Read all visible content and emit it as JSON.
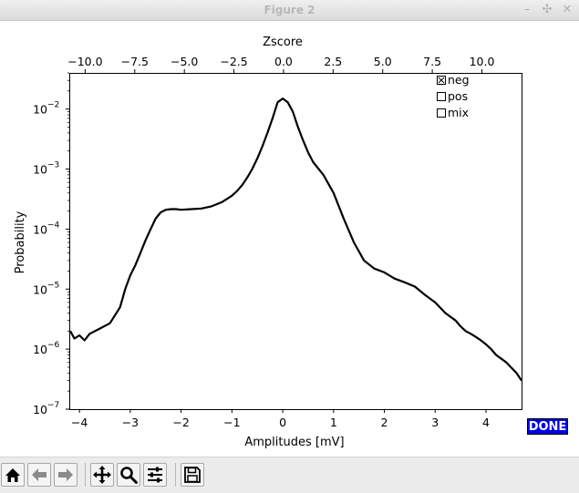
{
  "window": {
    "title": "Figure 2",
    "minimize": "–",
    "maximize": "✣",
    "close": "✕"
  },
  "done_label": "DONE",
  "checkboxes": [
    {
      "label": "neg",
      "checked": true
    },
    {
      "label": "pos",
      "checked": false
    },
    {
      "label": "mix",
      "checked": false
    }
  ],
  "toolbar": {
    "icons": [
      "home-icon",
      "back-icon",
      "forward-icon",
      "pan-icon",
      "zoom-icon",
      "configure-subplots-icon",
      "save-icon"
    ]
  },
  "chart_data": {
    "type": "line",
    "title": "",
    "xlabel": "Amplitudes [mV]",
    "ylabel": "Probability",
    "top_xlabel": "Zscore",
    "xlim": [
      -4.2,
      4.7
    ],
    "top_xlim": [
      -10.8,
      12.0
    ],
    "ylim": [
      1e-07,
      0.04
    ],
    "yscale": "log",
    "grid": false,
    "line_color": "#000000",
    "x_ticks": [
      "−4",
      "−3",
      "−2",
      "−1",
      "0",
      "1",
      "2",
      "3",
      "4"
    ],
    "x_tick_values": [
      -4,
      -3,
      -2,
      -1,
      0,
      1,
      2,
      3,
      4
    ],
    "top_ticks": [
      "−10.0",
      "−7.5",
      "−5.0",
      "−2.5",
      "0.0",
      "2.5",
      "5.0",
      "7.5",
      "10.0"
    ],
    "top_tick_values": [
      -10,
      -7.5,
      -5,
      -2.5,
      0,
      2.5,
      5,
      7.5,
      10
    ],
    "y_ticks": [
      "10",
      "10",
      "10",
      "10",
      "10",
      "10"
    ],
    "y_tick_exponents": [
      "−2",
      "−3",
      "−4",
      "−5",
      "−6",
      "−7"
    ],
    "y_tick_values": [
      0.01,
      0.001,
      0.0001,
      1e-05,
      1e-06,
      1e-07
    ],
    "series": [
      {
        "x": [
          -4.18,
          -4.1,
          -4.0,
          -3.9,
          -3.8,
          -3.6,
          -3.4,
          -3.2,
          -3.1,
          -3.0,
          -2.9,
          -2.8,
          -2.7,
          -2.6,
          -2.5,
          -2.4,
          -2.3,
          -2.2,
          -2.1,
          -2.0,
          -1.8,
          -1.6,
          -1.4,
          -1.2,
          -1.0,
          -0.9,
          -0.8,
          -0.7,
          -0.6,
          -0.5,
          -0.4,
          -0.3,
          -0.2,
          -0.1,
          0.0,
          0.1,
          0.2,
          0.3,
          0.4,
          0.5,
          0.6,
          0.8,
          1.0,
          1.2,
          1.4,
          1.6,
          1.8,
          2.0,
          2.2,
          2.4,
          2.6,
          2.8,
          3.0,
          3.2,
          3.4,
          3.5,
          3.6,
          3.7,
          3.8,
          3.9,
          4.0,
          4.1,
          4.2,
          4.4,
          4.6,
          4.7
        ],
        "y": [
          2e-06,
          1.5e-06,
          1.7e-06,
          1.4e-06,
          1.8e-06,
          2.2e-06,
          2.7e-06,
          5e-06,
          1e-05,
          1.7e-05,
          2.5e-05,
          4e-05,
          6.5e-05,
          0.0001,
          0.00015,
          0.00019,
          0.00021,
          0.000215,
          0.000215,
          0.00021,
          0.000215,
          0.00022,
          0.00024,
          0.00028,
          0.00036,
          0.00043,
          0.00054,
          0.00072,
          0.001,
          0.0015,
          0.0024,
          0.004,
          0.007,
          0.013,
          0.015,
          0.013,
          0.009,
          0.005,
          0.003,
          0.0019,
          0.0013,
          0.0008,
          0.0004,
          0.00015,
          6e-05,
          3e-05,
          2.2e-05,
          1.9e-05,
          1.5e-05,
          1.3e-05,
          1.1e-05,
          8e-06,
          6e-06,
          4e-06,
          3e-06,
          2.4e-06,
          2e-06,
          1.8e-06,
          1.6e-06,
          1.4e-06,
          1.2e-06,
          1e-06,
          8e-07,
          6e-07,
          4e-07,
          3e-07
        ]
      }
    ]
  }
}
